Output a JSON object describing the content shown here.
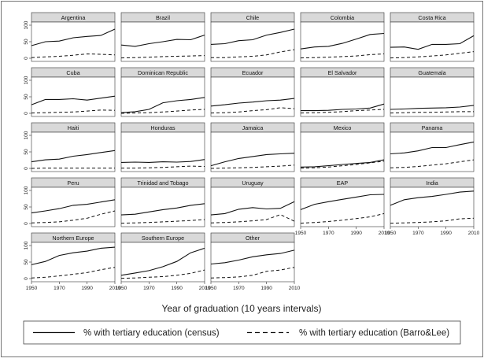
{
  "chart_data": {
    "type": "line",
    "layout": "small-multiples",
    "xlabel": "Year of graduation (10 years intervals)",
    "ylabel": "",
    "x": [
      1950,
      1960,
      1970,
      1980,
      1990,
      2000,
      2010
    ],
    "x_ticks": [
      "1950",
      "1970",
      "1990",
      "2010"
    ],
    "y_ticks": [
      "0",
      "50",
      "100"
    ],
    "ylim": [
      0,
      100
    ],
    "xlim": [
      1950,
      2010
    ],
    "grid": false,
    "legend": {
      "placement": "bottom",
      "entries": [
        {
          "label": "% with tertiary education (census)",
          "style": "solid"
        },
        {
          "label": "% with tertiary education (Barro&Lee)",
          "style": "dashed"
        }
      ]
    },
    "colors": {
      "line": "#111111",
      "panel_header": "#d9d9d9",
      "frame": "#333333"
    },
    "panels": [
      {
        "title": "Argentina",
        "census": [
          38,
          50,
          52,
          62,
          66,
          69,
          88
        ],
        "barro_lee": [
          2,
          4,
          6,
          9,
          13,
          12,
          10
        ]
      },
      {
        "title": "Brazil",
        "census": [
          40,
          36,
          44,
          50,
          57,
          56,
          70
        ],
        "barro_lee": [
          1,
          2,
          3,
          5,
          6,
          7,
          8
        ]
      },
      {
        "title": "Chile",
        "census": [
          42,
          44,
          53,
          56,
          70,
          78,
          88
        ],
        "barro_lee": [
          2,
          2,
          4,
          6,
          10,
          19,
          26
        ]
      },
      {
        "title": "Colombia",
        "census": [
          28,
          34,
          36,
          45,
          58,
          72,
          75
        ],
        "barro_lee": [
          1,
          2,
          3,
          5,
          7,
          11,
          13
        ]
      },
      {
        "title": "Costa Rica",
        "census": [
          33,
          34,
          27,
          42,
          42,
          44,
          68
        ],
        "barro_lee": [
          1,
          2,
          4,
          7,
          10,
          15,
          20
        ]
      },
      {
        "title": "Cuba",
        "census": [
          26,
          42,
          42,
          44,
          40,
          46,
          52
        ],
        "barro_lee": [
          1,
          2,
          3,
          4,
          7,
          10,
          9
        ]
      },
      {
        "title": "Dominican Republic",
        "census": [
          2,
          5,
          12,
          32,
          38,
          42,
          48
        ],
        "barro_lee": [
          0,
          1,
          2,
          4,
          7,
          10,
          12
        ]
      },
      {
        "title": "Ecuador",
        "census": [
          22,
          26,
          31,
          34,
          38,
          40,
          45
        ],
        "barro_lee": [
          1,
          2,
          4,
          8,
          11,
          17,
          14
        ]
      },
      {
        "title": "El Salvador",
        "census": [
          8,
          8,
          9,
          12,
          13,
          16,
          28
        ],
        "barro_lee": [
          1,
          2,
          3,
          5,
          8,
          10,
          12
        ]
      },
      {
        "title": "Guatemala",
        "census": [
          12,
          13,
          15,
          16,
          17,
          19,
          24
        ],
        "barro_lee": [
          1,
          2,
          3,
          3,
          4,
          5,
          5
        ]
      },
      {
        "title": "Haiti",
        "census": [
          20,
          26,
          28,
          37,
          42,
          48,
          54
        ],
        "barro_lee": [
          0,
          1,
          1,
          1,
          1,
          1,
          1
        ]
      },
      {
        "title": "Honduras",
        "census": [
          18,
          19,
          18,
          20,
          19,
          21,
          27
        ],
        "barro_lee": [
          1,
          1,
          2,
          3,
          5,
          7,
          6
        ]
      },
      {
        "title": "Jamaica",
        "census": [
          8,
          20,
          30,
          36,
          42,
          44,
          46
        ],
        "barro_lee": [
          0,
          1,
          2,
          3,
          5,
          7,
          10
        ]
      },
      {
        "title": "Mexico",
        "census": [
          4,
          5,
          8,
          12,
          15,
          18,
          26
        ],
        "barro_lee": [
          1,
          2,
          4,
          8,
          12,
          17,
          22
        ]
      },
      {
        "title": "Panama",
        "census": [
          44,
          47,
          53,
          63,
          63,
          72,
          80
        ],
        "barro_lee": [
          2,
          3,
          6,
          10,
          14,
          20,
          26
        ]
      },
      {
        "title": "Peru",
        "census": [
          32,
          38,
          45,
          55,
          58,
          65,
          72
        ],
        "barro_lee": [
          2,
          3,
          5,
          10,
          16,
          28,
          38
        ]
      },
      {
        "title": "Trinidad and Tobago",
        "census": [
          26,
          28,
          35,
          42,
          47,
          55,
          60
        ],
        "barro_lee": [
          1,
          2,
          3,
          5,
          7,
          9,
          12
        ]
      },
      {
        "title": "Uruguay",
        "census": [
          26,
          30,
          43,
          48,
          44,
          46,
          66
        ],
        "barro_lee": [
          2,
          3,
          5,
          8,
          12,
          27,
          7
        ]
      },
      {
        "title": "EAP",
        "census": [
          42,
          58,
          66,
          73,
          80,
          87,
          88
        ],
        "barro_lee": [
          1,
          3,
          6,
          10,
          15,
          20,
          30
        ]
      },
      {
        "title": "India",
        "census": [
          55,
          72,
          78,
          82,
          88,
          95,
          98
        ],
        "barro_lee": [
          1,
          2,
          3,
          5,
          8,
          14,
          16
        ]
      },
      {
        "title": "Northern Europe",
        "census": [
          42,
          52,
          70,
          78,
          83,
          92,
          95
        ],
        "barro_lee": [
          2,
          4,
          8,
          13,
          18,
          27,
          34
        ]
      },
      {
        "title": "Southern Europe",
        "census": [
          10,
          17,
          24,
          36,
          52,
          78,
          92
        ],
        "barro_lee": [
          1,
          2,
          4,
          6,
          10,
          16,
          26
        ]
      },
      {
        "title": "Other",
        "census": [
          44,
          48,
          56,
          66,
          72,
          76,
          86
        ],
        "barro_lee": [
          2,
          3,
          5,
          10,
          22,
          26,
          34
        ]
      }
    ]
  }
}
